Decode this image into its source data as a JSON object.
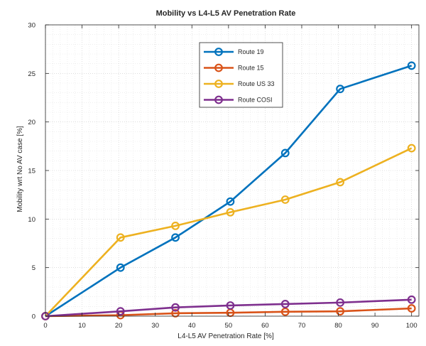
{
  "chart_data": {
    "type": "line",
    "title": "Mobility vs L4-L5 AV Penetration Rate",
    "xlabel": "L4-L5 AV Penetration Rate [%]",
    "ylabel": "Mobility wrt No AV case [%]",
    "xlim": [
      0,
      102
    ],
    "ylim": [
      0,
      30
    ],
    "xticks": [
      "0",
      "10",
      "20",
      "30",
      "40",
      "50",
      "60",
      "70",
      "80",
      "90",
      "100"
    ],
    "yticks": [
      "0",
      "5",
      "10",
      "15",
      "20",
      "25",
      "30"
    ],
    "grid": true,
    "grid_style": "dotted",
    "legend_position": "top-center",
    "series": [
      {
        "name": "Route 19",
        "color": "#0072BD",
        "x": [
          0,
          20.5,
          35.5,
          50.5,
          65.5,
          80.5,
          100
        ],
        "y": [
          0,
          5.0,
          8.1,
          11.8,
          16.8,
          23.4,
          25.8
        ]
      },
      {
        "name": "Route 15",
        "color": "#D95319",
        "x": [
          0,
          20.5,
          35.5,
          50.5,
          65.5,
          80.5,
          100
        ],
        "y": [
          0,
          0.1,
          0.3,
          0.35,
          0.45,
          0.5,
          0.8
        ]
      },
      {
        "name": "Route US 33",
        "color": "#EDB120",
        "x": [
          0,
          20.5,
          35.5,
          50.5,
          65.5,
          80.5,
          100
        ],
        "y": [
          0,
          8.1,
          9.3,
          10.7,
          12.0,
          13.8,
          17.3
        ]
      },
      {
        "name": "Route COSI",
        "color": "#7E2F8E",
        "x": [
          0,
          20.5,
          35.5,
          50.5,
          65.5,
          80.5,
          100
        ],
        "y": [
          0,
          0.5,
          0.9,
          1.1,
          1.25,
          1.4,
          1.7
        ]
      }
    ]
  }
}
